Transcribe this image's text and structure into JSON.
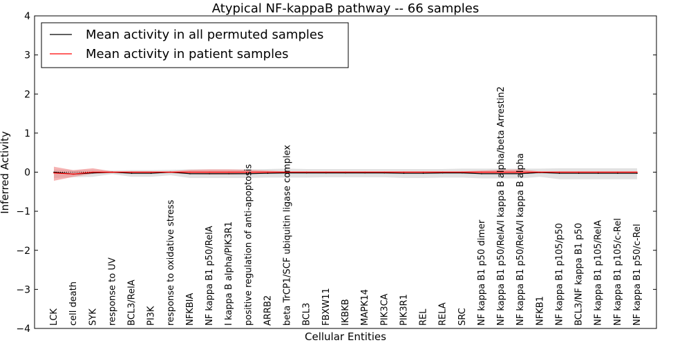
{
  "chart_data": {
    "type": "line",
    "title": "Atypical NF-kappaB pathway -- 66 samples",
    "xlabel": "Cellular Entities",
    "ylabel": "Inferred Activity",
    "ylim": [
      -4,
      4
    ],
    "yticks": [
      4,
      3,
      2,
      1,
      0,
      -1,
      -2,
      -3,
      -4
    ],
    "grid": false,
    "legend_position": "top-left",
    "categories": [
      "LCK",
      "cell death",
      "SYK",
      "response to UV",
      "BCL3/RelA",
      "PI3K",
      "response to oxidative stress",
      "NFKBIA",
      "NF kappa B1 p50/RelA",
      "I kappa B alpha/PIK3R1",
      "positive regulation of anti-apoptosis",
      "ARRB2",
      "beta TrCP1/SCF ubiquitin ligase complex",
      "BCL3",
      "FBXW11",
      "IKBKB",
      "MAPK14",
      "PIK3CA",
      "PIK3R1",
      "REL",
      "RELA",
      "SRC",
      "NF kappa B1 p50 dimer",
      "NF kappa B1 p50/RelA/I kappa B alpha/beta Arrestin2",
      "NF kappa B1 p50/RelA/I kappa B alpha",
      "NFKB1",
      "NF kappa B1 p105/p50",
      "BCL3/NF kappa B1 p50",
      "NF kappa B1 p105/RelA",
      "NF kappa B1 p105/c-Rel",
      "NF kappa B1 p50/c-Rel"
    ],
    "series": [
      {
        "name": "Mean activity in all permuted samples",
        "color": "#000000",
        "values": [
          0.0,
          -0.05,
          -0.02,
          0.0,
          -0.03,
          -0.03,
          0.0,
          -0.04,
          -0.04,
          -0.04,
          -0.04,
          -0.03,
          -0.02,
          -0.02,
          -0.02,
          -0.02,
          -0.02,
          -0.02,
          -0.03,
          -0.03,
          -0.02,
          -0.02,
          -0.04,
          -0.04,
          -0.04,
          -0.01,
          -0.03,
          -0.03,
          -0.03,
          -0.03,
          -0.03
        ],
        "lower": [
          -0.15,
          -0.13,
          -0.12,
          -0.05,
          -0.12,
          -0.12,
          -0.08,
          -0.15,
          -0.15,
          -0.15,
          -0.15,
          -0.14,
          -0.14,
          -0.14,
          -0.13,
          -0.13,
          -0.13,
          -0.13,
          -0.15,
          -0.15,
          -0.14,
          -0.14,
          -0.16,
          -0.16,
          -0.16,
          -0.12,
          -0.18,
          -0.18,
          -0.18,
          -0.18,
          -0.18
        ],
        "upper": [
          0.07,
          0.05,
          0.06,
          0.04,
          0.05,
          0.05,
          0.06,
          0.07,
          0.07,
          0.07,
          0.07,
          0.08,
          0.09,
          0.08,
          0.08,
          0.08,
          0.08,
          0.08,
          0.08,
          0.08,
          0.08,
          0.09,
          0.09,
          0.09,
          0.09,
          0.09,
          0.1,
          0.1,
          0.1,
          0.1,
          0.1
        ]
      },
      {
        "name": "Mean activity in patient samples",
        "color": "#ff0000",
        "fill": "#f08080",
        "values": [
          -0.02,
          -0.05,
          0.0,
          0.0,
          0.0,
          0.0,
          0.0,
          0.0,
          0.0,
          0.0,
          0.0,
          0.0,
          0.0,
          0.0,
          0.0,
          0.0,
          0.0,
          0.0,
          0.0,
          0.0,
          0.0,
          0.0,
          0.0,
          0.0,
          0.0,
          0.0,
          0.0,
          0.0,
          0.0,
          0.0,
          0.0
        ],
        "lower": [
          -0.22,
          -0.12,
          -0.04,
          -0.02,
          -0.02,
          -0.02,
          -0.02,
          -0.05,
          -0.06,
          -0.06,
          -0.05,
          -0.03,
          -0.02,
          -0.02,
          -0.02,
          -0.02,
          -0.02,
          -0.02,
          -0.02,
          -0.02,
          -0.02,
          -0.02,
          -0.04,
          -0.05,
          -0.05,
          -0.02,
          -0.02,
          -0.02,
          -0.02,
          -0.02,
          -0.02
        ],
        "upper": [
          0.14,
          0.05,
          0.1,
          0.02,
          0.02,
          0.02,
          0.02,
          0.06,
          0.07,
          0.07,
          0.06,
          0.04,
          0.02,
          0.02,
          0.02,
          0.02,
          0.02,
          0.02,
          0.02,
          0.02,
          0.02,
          0.02,
          0.04,
          0.06,
          0.07,
          0.02,
          0.02,
          0.02,
          0.02,
          0.02,
          0.02
        ]
      }
    ]
  }
}
